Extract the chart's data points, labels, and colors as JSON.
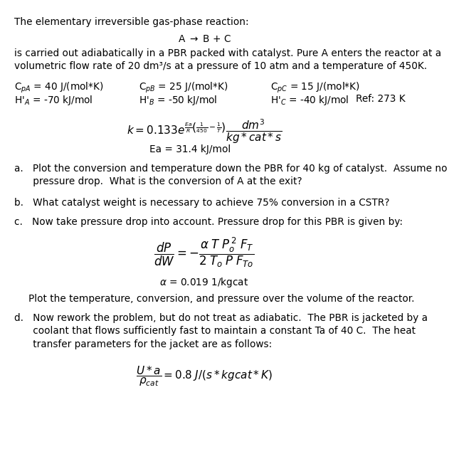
{
  "title_line": "The elementary irreversible gas-phase reaction:",
  "reaction_text": "A → B + C",
  "intro_text": "is carried out adiabatically in a PBR packed with catalyst. Pure A enters the reactor at a\nvolumetric flow rate of 20 dm³/s at a pressure of 10 atm and a temperature of 450K.",
  "cpa": "C$_{pA}$ = 40 J/(mol*K)",
  "cpb": "C$_{pB}$ = 25 J/(mol*K)",
  "cpc": "C$_{pC}$ = 15 J/(mol*K)",
  "ha": "Hʹ$_{A}$ = -70 kJ/mol",
  "hb": "Hʹ$_{B}$ = -50 kJ/mol",
  "hc": "Hʹ$_{C}$ = -40 kJ/mol",
  "ref": "Ref: 273 K",
  "ea_line": "Ea = 31.4 kJ/mol",
  "part_a": "a.   Plot the conversion and temperature down the PBR for 40 kg of catalyst.  Assume no\n      pressure drop.  What is the conversion of A at the exit?",
  "part_b": "b.   What catalyst weight is necessary to achieve 75% conversion in a CSTR?",
  "part_c": "c.   Now take pressure drop into account. Pressure drop for this PBR is given by:",
  "alpha_line": "α = 0.019 1/kgcat",
  "plot_line": "     Plot the temperature, conversion, and pressure over the volume of the reactor.",
  "part_d": "d.   Now rework the problem, but do not treat as adiabatic.  The PBR is jacketed by a\n      coolant that flows sufficiently fast to maintain a constant Ta of 40 C.  The heat\n      transfer parameters for the jacket are as follows:",
  "bg_color": "#ffffff",
  "text_color": "#000000",
  "fs": 9.8,
  "fs_math": 11.0
}
